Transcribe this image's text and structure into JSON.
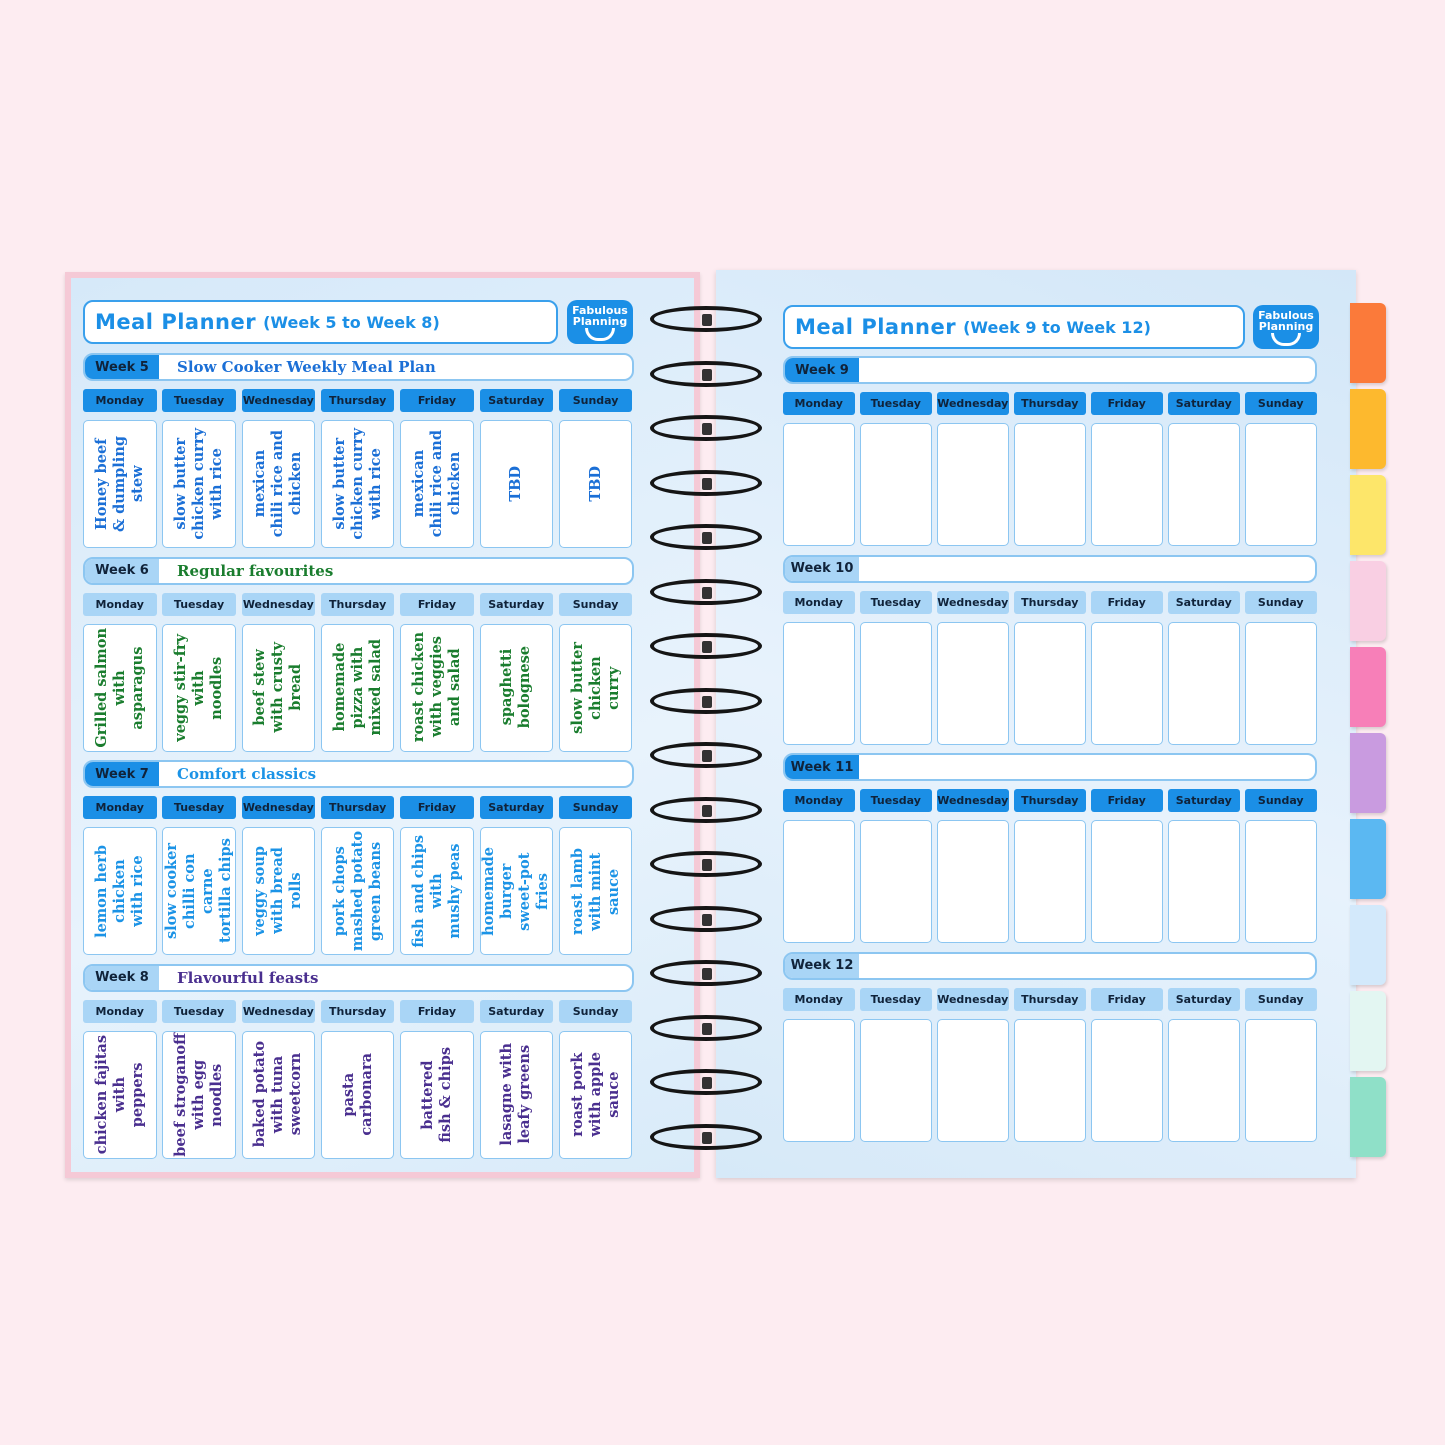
{
  "left": {
    "title": "Meal Planner",
    "subtitle": "(Week 5 to Week 8)",
    "logo": "Fabulous Planning",
    "weeks": [
      {
        "label": "Week 5",
        "theme": "Slow Cooker Weekly Meal Plan",
        "style": "dark",
        "text_color": "#1b6fd6",
        "meals": [
          "Honey beef\n& dumpling\nstew",
          "slow butter\nchicken curry\nwith rice",
          "mexican\nchili rice and\nchicken",
          "slow butter\nchicken curry\nwith rice",
          "mexican\nchili rice and\nchicken",
          "TBD",
          "TBD"
        ]
      },
      {
        "label": "Week 6",
        "theme": "Regular favourites",
        "style": "light",
        "text_color": "#1a7d2e",
        "meals": [
          "Grilled salmon\nwith\nasparagus",
          "veggy stir-fry\nwith\nnoodles",
          "beef stew\nwith crusty\nbread",
          "homemade\npizza with\nmixed salad",
          "roast chicken\nwith veggies\nand salad",
          "spaghetti\nbolognese",
          "slow butter\nchicken\ncurry"
        ]
      },
      {
        "label": "Week 7",
        "theme": "Comfort classics",
        "style": "dark",
        "text_color": "#1b93e6",
        "meals": [
          "lemon herb\nchicken\nwith rice",
          "slow cooker\nchilli con carne\ntortilla chips",
          "veggy soup\nwith bread\nrolls",
          "pork chops\nmashed potato\ngreen beans",
          "fish and chips\nwith\nmushy peas",
          "homemade\nburger\nsweet-pot\nfries",
          "roast lamb\nwith mint\nsauce"
        ]
      },
      {
        "label": "Week 8",
        "theme": "Flavourful feasts",
        "style": "light",
        "text_color": "#4a2f8f",
        "meals": [
          "chicken fajitas\nwith\npeppers",
          "beef stroganoff\nwith egg\nnoodles",
          "baked potato\nwith tuna\nsweetcorn",
          "pasta\ncarbonara",
          "battered\nfish & chips",
          "lasagne with\nleafy greens",
          "roast pork\nwith apple\nsauce"
        ]
      }
    ]
  },
  "right": {
    "title": "Meal Planner",
    "subtitle": "(Week 9 to Week 12)",
    "logo": "Fabulous Planning",
    "weeks": [
      {
        "label": "Week 9",
        "theme": "",
        "style": "dark",
        "meals": [
          "",
          "",
          "",
          "",
          "",
          "",
          ""
        ]
      },
      {
        "label": "Week 10",
        "theme": "",
        "style": "light",
        "meals": [
          "",
          "",
          "",
          "",
          "",
          "",
          ""
        ]
      },
      {
        "label": "Week 11",
        "theme": "",
        "style": "dark",
        "meals": [
          "",
          "",
          "",
          "",
          "",
          "",
          ""
        ]
      },
      {
        "label": "Week 12",
        "theme": "",
        "style": "light",
        "meals": [
          "",
          "",
          "",
          "",
          "",
          "",
          ""
        ]
      }
    ]
  },
  "days": [
    "Monday",
    "Tuesday",
    "Wednesday",
    "Thursday",
    "Friday",
    "Saturday",
    "Sunday"
  ],
  "colors": {
    "dark": "#1b8fe6",
    "light": "#a9d5f6",
    "background": "#fdecf1"
  },
  "tabs": [
    "#fb7a3a",
    "#fdb92e",
    "#fde66a",
    "#f9cfe3",
    "#f77fb8",
    "#c99be0",
    "#5bb8f2",
    "#d3e9fb",
    "#e3f6f2",
    "#8fe0c8"
  ]
}
